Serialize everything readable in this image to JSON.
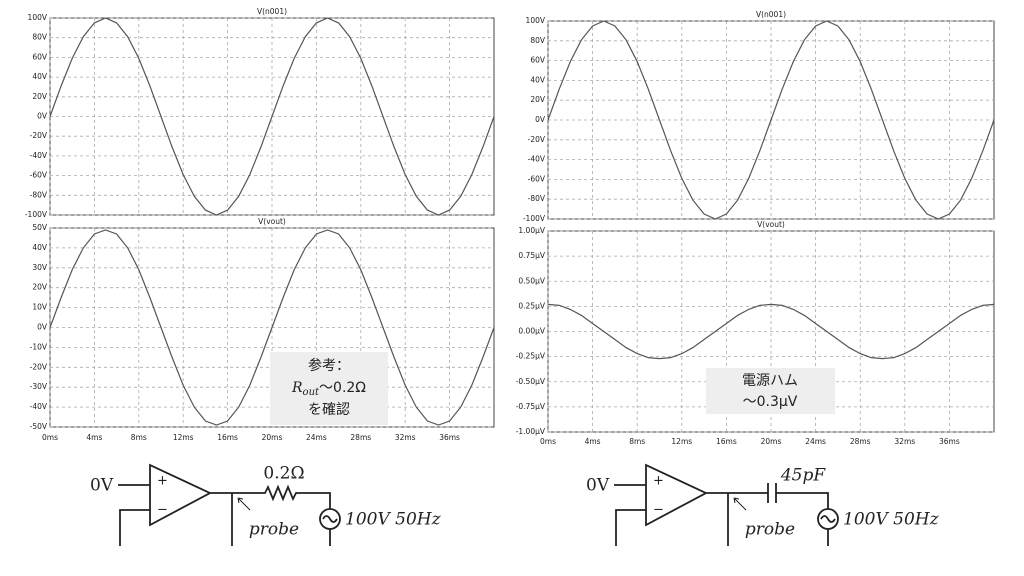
{
  "chart_data": [
    {
      "type": "line",
      "xlim": [
        0,
        40
      ],
      "xticks": [
        {
          "value": 0,
          "label": "0ms"
        },
        {
          "value": 4,
          "label": "4ms"
        },
        {
          "value": 8,
          "label": "8ms"
        },
        {
          "value": 12,
          "label": "12ms"
        },
        {
          "value": 16,
          "label": "16ms"
        },
        {
          "value": 20,
          "label": "20ms"
        },
        {
          "value": 24,
          "label": "24ms"
        },
        {
          "value": 28,
          "label": "28ms"
        },
        {
          "value": 32,
          "label": "32ms"
        },
        {
          "value": 36,
          "label": "36ms"
        }
      ],
      "x": [
        0,
        1,
        2,
        3,
        4,
        5,
        6,
        7,
        8,
        9,
        10,
        11,
        12,
        13,
        14,
        15,
        16,
        17,
        18,
        19,
        20,
        21,
        22,
        23,
        24,
        25,
        26,
        27,
        28,
        29,
        30,
        31,
        32,
        33,
        34,
        35,
        36,
        37,
        38,
        39,
        40
      ],
      "plots": [
        {
          "title": "V(n001)",
          "color": "#555555",
          "ylim": [
            -100,
            100
          ],
          "yticks": [
            {
              "value": 100,
              "label": "100V"
            },
            {
              "value": 80,
              "label": "80V"
            },
            {
              "value": 60,
              "label": "60V"
            },
            {
              "value": 40,
              "label": "40V"
            },
            {
              "value": 20,
              "label": "20V"
            },
            {
              "value": 0,
              "label": "0V"
            },
            {
              "value": -20,
              "label": "-20V"
            },
            {
              "value": -40,
              "label": "-40V"
            },
            {
              "value": -60,
              "label": "-60V"
            },
            {
              "value": -80,
              "label": "-80V"
            },
            {
              "value": -100,
              "label": "-100V"
            }
          ],
          "values": [
            0,
            31,
            59,
            81,
            95,
            100,
            95,
            81,
            59,
            31,
            0,
            -31,
            -59,
            -81,
            -95,
            -100,
            -95,
            -81,
            -59,
            -31,
            0,
            31,
            59,
            81,
            95,
            100,
            95,
            81,
            59,
            31,
            0,
            -31,
            -59,
            -81,
            -95,
            -100,
            -95,
            -81,
            -59,
            -31,
            0
          ]
        },
        {
          "title": "V(vout)",
          "color": "#555555",
          "ylim": [
            -50,
            50
          ],
          "yticks": [
            {
              "value": 50,
              "label": "50V"
            },
            {
              "value": 40,
              "label": "40V"
            },
            {
              "value": 30,
              "label": "30V"
            },
            {
              "value": 20,
              "label": "20V"
            },
            {
              "value": 10,
              "label": "10V"
            },
            {
              "value": 0,
              "label": "0V"
            },
            {
              "value": -10,
              "label": "-10V"
            },
            {
              "value": -20,
              "label": "-20V"
            },
            {
              "value": -30,
              "label": "-30V"
            },
            {
              "value": -40,
              "label": "-40V"
            },
            {
              "value": -50,
              "label": "-50V"
            }
          ],
          "values": [
            0,
            15,
            29,
            40,
            47,
            49,
            47,
            40,
            29,
            15,
            0,
            -15,
            -29,
            -40,
            -47,
            -49,
            -47,
            -40,
            -29,
            -15,
            0,
            15,
            29,
            40,
            47,
            49,
            47,
            40,
            29,
            15,
            0,
            -15,
            -29,
            -40,
            -47,
            -49,
            -47,
            -40,
            -29,
            -15,
            0
          ]
        }
      ],
      "annotation": {
        "line1": "参考：",
        "symbol": "R",
        "subscript": "out",
        "line2": "～0.2Ω",
        "line3": "を確認"
      }
    },
    {
      "type": "line",
      "xlim": [
        0,
        40
      ],
      "xticks": [
        {
          "value": 0,
          "label": "0ms"
        },
        {
          "value": 4,
          "label": "4ms"
        },
        {
          "value": 8,
          "label": "8ms"
        },
        {
          "value": 12,
          "label": "12ms"
        },
        {
          "value": 16,
          "label": "16ms"
        },
        {
          "value": 20,
          "label": "20ms"
        },
        {
          "value": 24,
          "label": "24ms"
        },
        {
          "value": 28,
          "label": "28ms"
        },
        {
          "value": 32,
          "label": "32ms"
        },
        {
          "value": 36,
          "label": "36ms"
        }
      ],
      "x": [
        0,
        1,
        2,
        3,
        4,
        5,
        6,
        7,
        8,
        9,
        10,
        11,
        12,
        13,
        14,
        15,
        16,
        17,
        18,
        19,
        20,
        21,
        22,
        23,
        24,
        25,
        26,
        27,
        28,
        29,
        30,
        31,
        32,
        33,
        34,
        35,
        36,
        37,
        38,
        39,
        40
      ],
      "plots": [
        {
          "title": "V(n001)",
          "color": "#555555",
          "ylim": [
            -100,
            100
          ],
          "yticks": [
            {
              "value": 100,
              "label": "100V"
            },
            {
              "value": 80,
              "label": "80V"
            },
            {
              "value": 60,
              "label": "60V"
            },
            {
              "value": 40,
              "label": "40V"
            },
            {
              "value": 20,
              "label": "20V"
            },
            {
              "value": 0,
              "label": "0V"
            },
            {
              "value": -20,
              "label": "-20V"
            },
            {
              "value": -40,
              "label": "-40V"
            },
            {
              "value": -60,
              "label": "-60V"
            },
            {
              "value": -80,
              "label": "-80V"
            },
            {
              "value": -100,
              "label": "-100V"
            }
          ],
          "values": [
            0,
            31,
            59,
            81,
            95,
            100,
            95,
            81,
            59,
            31,
            0,
            -31,
            -59,
            -81,
            -95,
            -100,
            -95,
            -81,
            -59,
            -31,
            0,
            31,
            59,
            81,
            95,
            100,
            95,
            81,
            59,
            31,
            0,
            -31,
            -59,
            -81,
            -95,
            -100,
            -95,
            -81,
            -59,
            -31,
            0
          ]
        },
        {
          "title": "V(vout)",
          "color": "#555555",
          "ylim": [
            -1,
            1
          ],
          "yticks": [
            {
              "value": 1,
              "label": "1.00µV"
            },
            {
              "value": 0.75,
              "label": "0.75µV"
            },
            {
              "value": 0.5,
              "label": "0.50µV"
            },
            {
              "value": 0.25,
              "label": "0.25µV"
            },
            {
              "value": 0,
              "label": "0.00µV"
            },
            {
              "value": -0.25,
              "label": "-0.25µV"
            },
            {
              "value": -0.5,
              "label": "-0.50µV"
            },
            {
              "value": -0.75,
              "label": "-0.75µV"
            },
            {
              "value": -1,
              "label": "-1.00µV"
            }
          ],
          "values": [
            0.27,
            0.26,
            0.22,
            0.16,
            0.08,
            0,
            -0.08,
            -0.16,
            -0.22,
            -0.26,
            -0.27,
            -0.26,
            -0.22,
            -0.16,
            -0.08,
            0,
            0.08,
            0.16,
            0.22,
            0.26,
            0.27,
            0.26,
            0.22,
            0.16,
            0.08,
            0,
            -0.08,
            -0.16,
            -0.22,
            -0.26,
            -0.27,
            -0.26,
            -0.22,
            -0.16,
            -0.08,
            0,
            0.08,
            0.16,
            0.22,
            0.26,
            0.27
          ]
        }
      ],
      "annotation": {
        "line1": "電源ハム",
        "line2": "～0.3μV"
      }
    }
  ],
  "circuits": [
    {
      "input": "0V",
      "plus": "+",
      "minus": "−",
      "component": "0.2Ω",
      "probe": "probe",
      "source": "100V 50Hz"
    },
    {
      "input": "0V",
      "plus": "+",
      "minus": "−",
      "component": "45pF",
      "probe": "probe",
      "source": "100V 50Hz"
    }
  ]
}
